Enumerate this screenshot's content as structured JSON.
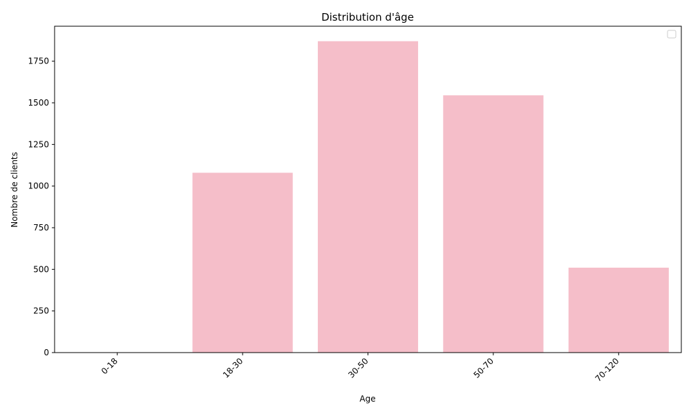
{
  "chart_data": {
    "type": "bar",
    "title": "Distribution d'âge",
    "xlabel": "Age",
    "ylabel": "Nombre de clients",
    "categories": [
      "0-18",
      "18-30",
      "30-50",
      "50-70",
      "70-120"
    ],
    "values": [
      0,
      1080,
      1870,
      1545,
      510
    ],
    "ylim": [
      0,
      1960
    ],
    "yticks": [
      0,
      250,
      500,
      750,
      1000,
      1250,
      1500,
      1750
    ],
    "bar_color": "#f5bec9",
    "grid": false,
    "legend": "top-right",
    "x_tick_rotation_deg": 45
  }
}
